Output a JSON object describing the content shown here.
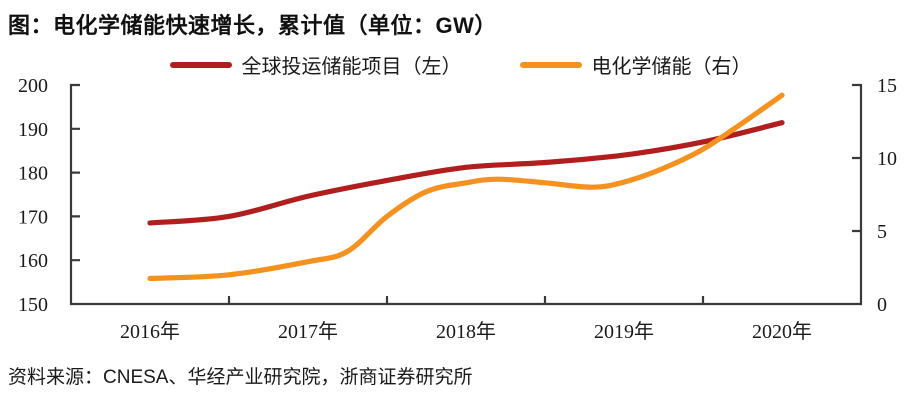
{
  "title": "图：电化学储能快速增长，累计值（单位：GW）",
  "source": "资料来源：CNESA、华经产业研究院，浙商证券研究所",
  "colors": {
    "global_storage_line": "#B01E1E",
    "electrochemical_line": "#F5911E",
    "axis": "#3a3a3a",
    "text": "#1a1a1a"
  },
  "chart_data": {
    "type": "line",
    "title": "图：电化学储能快速增长，累计值（单位：GW）",
    "unit": "GW",
    "categories": [
      "2016年",
      "2017年",
      "2018年",
      "2019年",
      "2020年"
    ],
    "left_axis": {
      "min": 150,
      "max": 200,
      "ticks": [
        150,
        160,
        170,
        180,
        190,
        200
      ]
    },
    "right_axis": {
      "min": 0,
      "max": 15,
      "ticks": [
        0,
        5,
        10,
        15
      ]
    },
    "grid": false,
    "legend_position": "top",
    "series": [
      {
        "name": "全球投运储能项目（左）",
        "axis": "left",
        "color": "#B01E1E",
        "values": [
          168.5,
          174.6,
          181.2,
          184.0,
          191.4
        ],
        "smooth_samples": [
          [
            0,
            168.5
          ],
          [
            0.5,
            170.0
          ],
          [
            1,
            174.6
          ],
          [
            1.5,
            178.2
          ],
          [
            2,
            181.2
          ],
          [
            2.5,
            182.3
          ],
          [
            3,
            184.0
          ],
          [
            3.5,
            187.0
          ],
          [
            4,
            191.4
          ]
        ]
      },
      {
        "name": "电化学储能（右）",
        "axis": "right",
        "color": "#F5911E",
        "values": [
          1.8,
          2.9,
          8.3,
          8.4,
          14.3
        ],
        "smooth_samples": [
          [
            0,
            1.75
          ],
          [
            0.5,
            2.0
          ],
          [
            1,
            2.9
          ],
          [
            1.25,
            3.6
          ],
          [
            1.5,
            6.0
          ],
          [
            1.75,
            7.7
          ],
          [
            2,
            8.3
          ],
          [
            2.2,
            8.55
          ],
          [
            2.5,
            8.3
          ],
          [
            2.8,
            8.0
          ],
          [
            3,
            8.35
          ],
          [
            3.25,
            9.3
          ],
          [
            3.5,
            10.6
          ],
          [
            3.75,
            12.4
          ],
          [
            4,
            14.3
          ]
        ]
      }
    ]
  }
}
